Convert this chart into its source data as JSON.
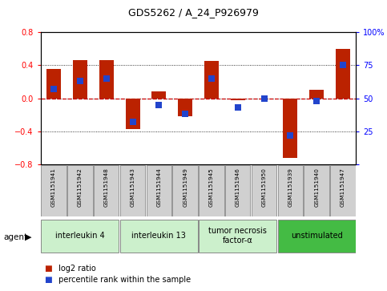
{
  "title": "GDS5262 / A_24_P926979",
  "samples": [
    "GSM1151941",
    "GSM1151942",
    "GSM1151948",
    "GSM1151943",
    "GSM1151944",
    "GSM1151949",
    "GSM1151945",
    "GSM1151946",
    "GSM1151950",
    "GSM1151939",
    "GSM1151940",
    "GSM1151947"
  ],
  "log2_ratio": [
    0.35,
    0.46,
    0.46,
    -0.37,
    0.08,
    -0.22,
    0.45,
    -0.02,
    0.0,
    -0.72,
    0.1,
    0.6
  ],
  "percentile_rank": [
    57,
    63,
    65,
    32,
    45,
    38,
    65,
    43,
    50,
    22,
    48,
    75
  ],
  "groups": [
    {
      "label": "interleukin 4",
      "start": 0,
      "end": 3,
      "color": "#ccf0cc"
    },
    {
      "label": "interleukin 13",
      "start": 3,
      "end": 6,
      "color": "#ccf0cc"
    },
    {
      "label": "tumor necrosis\nfactor-α",
      "start": 6,
      "end": 9,
      "color": "#ccf0cc"
    },
    {
      "label": "unstimulated",
      "start": 9,
      "end": 12,
      "color": "#44bb44"
    }
  ],
  "bar_color": "#bb2200",
  "dot_color": "#2244cc",
  "ylim_left": [
    -0.8,
    0.8
  ],
  "ylim_right": [
    0,
    100
  ],
  "yticks_left": [
    -0.8,
    -0.4,
    0.0,
    0.4,
    0.8
  ],
  "yticks_right": [
    0,
    25,
    50,
    75,
    100
  ],
  "bar_width": 0.55,
  "dot_size": 28,
  "bg_color": "#ffffff",
  "zero_line_color": "#cc0000",
  "sample_box_color": "#d0d0d0",
  "sample_box_edge": "#888888"
}
